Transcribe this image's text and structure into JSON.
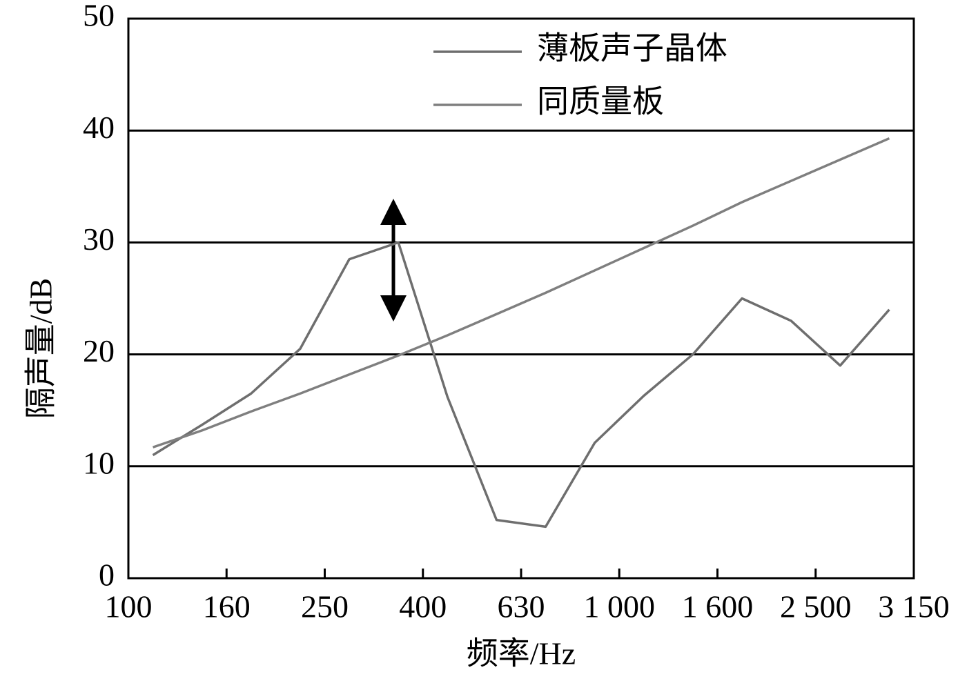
{
  "chart_data": {
    "type": "line",
    "xlabel": "频率/Hz",
    "ylabel": "隔声量/dB",
    "x": [
      0.5,
      1.5,
      2.5,
      3.5,
      4.5,
      5.5,
      6.5,
      7.5,
      8.5,
      9.5,
      10.5,
      11.5,
      12.5,
      13.5,
      14.5,
      15.5
    ],
    "series": [
      {
        "name": "薄板声子晶体",
        "color": "#6e6e6e",
        "values": [
          11.0,
          13.7,
          16.5,
          20.5,
          28.5,
          30.0,
          16.2,
          5.2,
          4.6,
          12.1,
          16.3,
          20.0,
          25.0,
          23.0,
          19.0,
          24.0
        ]
      },
      {
        "name": "同质量板",
        "color": "#7f7f7f",
        "values": [
          11.7,
          13.2,
          14.9,
          16.5,
          18.2,
          19.9,
          21.7,
          23.6,
          25.5,
          27.5,
          29.5,
          31.5,
          33.6,
          35.5,
          37.4,
          39.3
        ]
      }
    ],
    "xlim": [
      0,
      16
    ],
    "xticks": [
      {
        "value": 0,
        "label": "100"
      },
      {
        "value": 2,
        "label": "160"
      },
      {
        "value": 4,
        "label": "250"
      },
      {
        "value": 6,
        "label": "400"
      },
      {
        "value": 8,
        "label": "630"
      },
      {
        "value": 10,
        "label": "1 000"
      },
      {
        "value": 12,
        "label": "1 600"
      },
      {
        "value": 14,
        "label": "2 500"
      },
      {
        "value": 16,
        "label": "3 150"
      }
    ],
    "ylim": [
      0,
      50
    ],
    "yticks": [
      0,
      10,
      20,
      30,
      40,
      50
    ],
    "grid": true,
    "legend": "upper center"
  }
}
